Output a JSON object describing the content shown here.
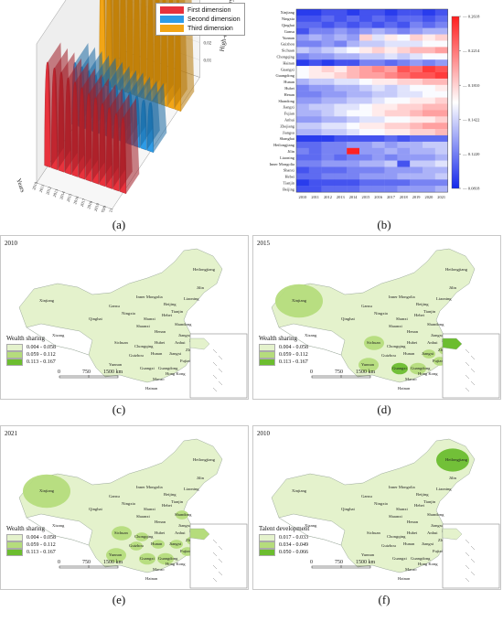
{
  "captions": [
    "(a)",
    "(b)",
    "(c)",
    "(d)",
    "(e)",
    "(f)"
  ],
  "panel_a": {
    "legend": [
      "First dimension",
      "Second dimension",
      "Third dimension"
    ],
    "colors": {
      "first": "#e8323c",
      "second": "#2e9be6",
      "third": "#f2a516"
    },
    "xlabel": "Years",
    "zlabel": "High-quality forestry development index",
    "years": [
      "2010",
      "2011",
      "2012",
      "2013",
      "2014",
      "2015",
      "2016",
      "2017",
      "2018",
      "2019",
      "2020",
      "2021"
    ],
    "zticks": [
      "0.00",
      "0.01",
      "0.02",
      "0.03",
      "0.04",
      "0.05",
      "0.06",
      "0.07",
      "0.08"
    ],
    "chart_data": {
      "type": "area",
      "x": [
        "2010",
        "2011",
        "2012",
        "2013",
        "2014",
        "2015",
        "2016",
        "2017",
        "2018",
        "2019",
        "2020",
        "2021"
      ],
      "series": [
        {
          "name": "First dimension",
          "values": [
            0.06,
            0.058,
            0.057,
            0.055,
            0.054,
            0.052,
            0.05,
            0.049,
            0.047,
            0.046,
            0.044,
            0.043
          ]
        },
        {
          "name": "Second dimension",
          "values": [
            0.036,
            0.035,
            0.034,
            0.033,
            0.033,
            0.032,
            0.031,
            0.03,
            0.03,
            0.029,
            0.028,
            0.028
          ]
        },
        {
          "name": "Third dimension",
          "values": [
            0.08,
            0.074,
            0.076,
            0.072,
            0.075,
            0.07,
            0.073,
            0.068,
            0.071,
            0.066,
            0.069,
            0.065
          ]
        }
      ],
      "ylim": [
        0,
        0.08
      ]
    }
  },
  "panel_b": {
    "provinces": [
      "Xinjiang",
      "Ningxia",
      "Qinghai",
      "Gansu",
      "Yunnan",
      "Guizhou",
      "Sichuan",
      "Chongqing",
      "Hainan",
      "Guangxi",
      "Guangdong",
      "Hunan",
      "Hubei",
      "Henan",
      "Shandong",
      "Jiangxi",
      "Fujian",
      "Anhui",
      "Zhejiang",
      "Jiangsu",
      "Shanghai",
      "Heilongjiang",
      "Jilin",
      "Liaoning",
      "Inner Mongolia",
      "Shanxi",
      "Hebei",
      "Tianjin",
      "Beijing"
    ],
    "years": [
      "2010",
      "2011",
      "2012",
      "2013",
      "2014",
      "2015",
      "2016",
      "2017",
      "2018",
      "2019",
      "2020",
      "2021"
    ],
    "scale_ticks": [
      "0.2618",
      "0.2214",
      "0.1810",
      "0.1422",
      "0.1220",
      "0.0818"
    ],
    "chart_data": {
      "type": "heatmap",
      "vmin": 0.0818,
      "vmax": 0.2618,
      "values": [
        [
          0.09,
          0.09,
          0.1,
          0.1,
          0.09,
          0.1,
          0.1,
          0.09,
          0.1,
          0.1,
          0.09,
          0.1
        ],
        [
          0.1,
          0.1,
          0.11,
          0.1,
          0.11,
          0.1,
          0.11,
          0.1,
          0.11,
          0.11,
          0.1,
          0.11
        ],
        [
          0.11,
          0.11,
          0.1,
          0.11,
          0.1,
          0.11,
          0.1,
          0.11,
          0.1,
          0.12,
          0.11,
          0.12
        ],
        [
          0.1,
          0.12,
          0.12,
          0.13,
          0.12,
          0.13,
          0.14,
          0.13,
          0.12,
          0.13,
          0.14,
          0.14
        ],
        [
          0.13,
          0.14,
          0.13,
          0.14,
          0.13,
          0.19,
          0.16,
          0.18,
          0.17,
          0.19,
          0.18,
          0.19
        ],
        [
          0.12,
          0.12,
          0.13,
          0.12,
          0.14,
          0.15,
          0.15,
          0.16,
          0.16,
          0.16,
          0.17,
          0.17
        ],
        [
          0.15,
          0.14,
          0.15,
          0.16,
          0.17,
          0.18,
          0.19,
          0.18,
          0.19,
          0.2,
          0.2,
          0.21
        ],
        [
          0.12,
          0.13,
          0.13,
          0.14,
          0.14,
          0.15,
          0.15,
          0.16,
          0.15,
          0.16,
          0.17,
          0.17
        ],
        [
          0.09,
          0.1,
          0.09,
          0.1,
          0.1,
          0.12,
          0.12,
          0.11,
          0.12,
          0.13,
          0.12,
          0.13
        ],
        [
          0.17,
          0.18,
          0.19,
          0.18,
          0.2,
          0.21,
          0.22,
          0.21,
          0.24,
          0.23,
          0.25,
          0.24
        ],
        [
          0.17,
          0.18,
          0.18,
          0.19,
          0.2,
          0.21,
          0.21,
          0.22,
          0.23,
          0.24,
          0.24,
          0.25
        ],
        [
          0.14,
          0.15,
          0.15,
          0.16,
          0.16,
          0.17,
          0.18,
          0.18,
          0.19,
          0.19,
          0.2,
          0.2
        ],
        [
          0.12,
          0.13,
          0.13,
          0.14,
          0.14,
          0.15,
          0.16,
          0.15,
          0.16,
          0.17,
          0.17,
          0.18
        ],
        [
          0.12,
          0.12,
          0.13,
          0.13,
          0.14,
          0.14,
          0.15,
          0.15,
          0.16,
          0.16,
          0.17,
          0.17
        ],
        [
          0.13,
          0.13,
          0.14,
          0.14,
          0.15,
          0.15,
          0.16,
          0.17,
          0.17,
          0.18,
          0.18,
          0.19
        ],
        [
          0.14,
          0.15,
          0.15,
          0.16,
          0.16,
          0.17,
          0.18,
          0.18,
          0.19,
          0.19,
          0.2,
          0.2
        ],
        [
          0.14,
          0.14,
          0.15,
          0.16,
          0.17,
          0.17,
          0.18,
          0.19,
          0.19,
          0.2,
          0.21,
          0.21
        ],
        [
          0.13,
          0.13,
          0.14,
          0.14,
          0.15,
          0.16,
          0.16,
          0.17,
          0.17,
          0.18,
          0.18,
          0.19
        ],
        [
          0.15,
          0.15,
          0.16,
          0.16,
          0.17,
          0.18,
          0.18,
          0.19,
          0.19,
          0.2,
          0.21,
          0.21
        ],
        [
          0.14,
          0.14,
          0.15,
          0.15,
          0.16,
          0.17,
          0.17,
          0.18,
          0.18,
          0.19,
          0.19,
          0.2
        ],
        [
          0.09,
          0.09,
          0.09,
          0.1,
          0.1,
          0.1,
          0.1,
          0.11,
          0.1,
          0.11,
          0.11,
          0.11
        ],
        [
          0.11,
          0.11,
          0.12,
          0.12,
          0.13,
          0.13,
          0.14,
          0.13,
          0.14,
          0.14,
          0.15,
          0.15
        ],
        [
          0.12,
          0.11,
          0.12,
          0.12,
          0.26,
          0.13,
          0.13,
          0.14,
          0.13,
          0.14,
          0.14,
          0.15
        ],
        [
          0.11,
          0.11,
          0.12,
          0.11,
          0.12,
          0.12,
          0.13,
          0.12,
          0.13,
          0.13,
          0.13,
          0.14
        ],
        [
          0.12,
          0.12,
          0.13,
          0.13,
          0.13,
          0.14,
          0.14,
          0.15,
          0.1,
          0.15,
          0.15,
          0.16
        ],
        [
          0.1,
          0.11,
          0.11,
          0.11,
          0.12,
          0.12,
          0.12,
          0.13,
          0.13,
          0.13,
          0.14,
          0.14
        ],
        [
          0.11,
          0.11,
          0.12,
          0.12,
          0.12,
          0.13,
          0.13,
          0.13,
          0.14,
          0.14,
          0.14,
          0.15
        ],
        [
          0.09,
          0.1,
          0.1,
          0.1,
          0.1,
          0.11,
          0.11,
          0.11,
          0.11,
          0.12,
          0.12,
          0.12
        ],
        [
          0.1,
          0.1,
          0.11,
          0.11,
          0.11,
          0.12,
          0.12,
          0.12,
          0.13,
          0.13,
          0.13,
          0.14
        ]
      ]
    }
  },
  "maps": {
    "place_labels": [
      "Xinjiang",
      "Xizang",
      "Qinghai",
      "Gansu",
      "Inner Mongolia",
      "Ningxia",
      "Shanxi",
      "Shaanxi",
      "Beijing",
      "Tianjin",
      "Hebei",
      "Shandong",
      "Liaoning",
      "Jilin",
      "Heilongjiang",
      "Henan",
      "Jiangsu",
      "Anhui",
      "Hubei",
      "Shanghai",
      "Sichuan",
      "Chongqing",
      "Zhejiang",
      "Hunan",
      "Jiangxi",
      "Guizhou",
      "Fujian",
      "Yunnan",
      "Guangxi",
      "Guangdong",
      "Taiwan",
      "Hong Kong",
      "Macao",
      "Hainan"
    ],
    "scale_labels": [
      "0",
      "750",
      "1500 km"
    ],
    "c": {
      "year": "2010",
      "legend_title": "Wealth sharing",
      "classes": [
        "0.004 - 0.058",
        "0.059 - 0.112",
        "0.113 - 0.167"
      ]
    },
    "d": {
      "year": "2015",
      "legend_title": "Wealth sharing",
      "classes": [
        "0.004 - 0.058",
        "0.059 - 0.112",
        "0.113 - 0.167"
      ]
    },
    "e": {
      "year": "2021",
      "legend_title": "Wealth sharing",
      "classes": [
        "0.004 - 0.058",
        "0.059 - 0.112",
        "0.113 - 0.167"
      ]
    },
    "f": {
      "year": "2010",
      "legend_title": "Talent development",
      "classes": [
        "0.017 - 0.033",
        "0.034 - 0.049",
        "0.050 - 0.066"
      ]
    },
    "class_colors": [
      "#e4f2cc",
      "#b5dc7c",
      "#6cbd2f"
    ]
  }
}
